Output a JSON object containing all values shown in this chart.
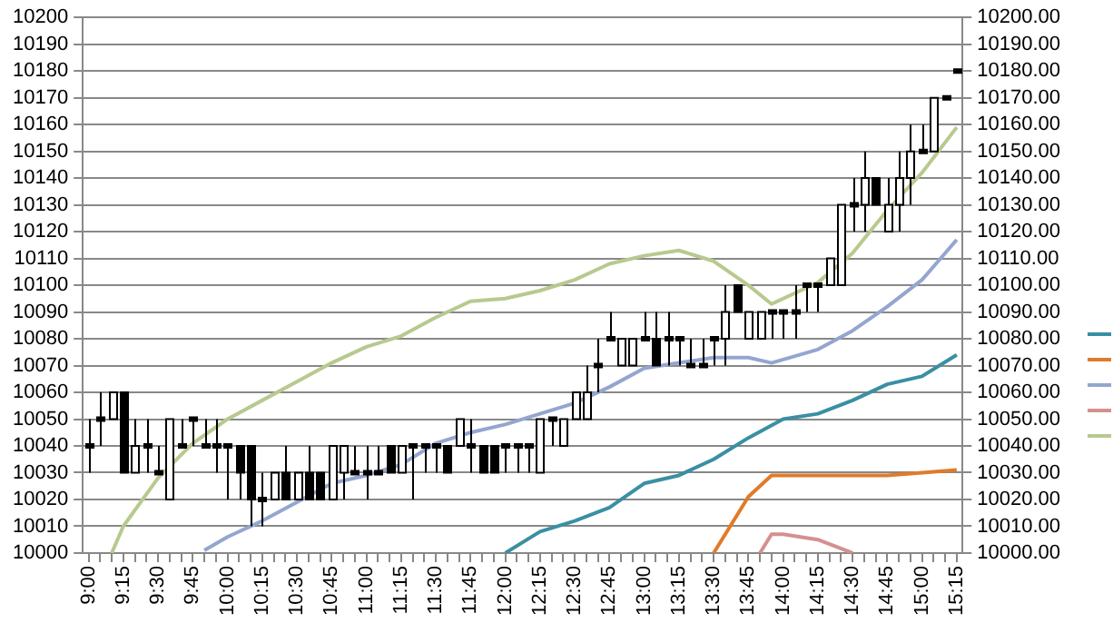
{
  "chart_data": {
    "type": "candlestick",
    "categories": [
      "9:00",
      null,
      null,
      "9:15",
      null,
      null,
      "9:30",
      null,
      null,
      "9:45",
      null,
      null,
      "10:00",
      null,
      null,
      "10:15",
      null,
      null,
      "10:30",
      null,
      null,
      "10:45",
      null,
      null,
      "11:00",
      null,
      null,
      "11:15",
      null,
      null,
      "11:30",
      null,
      null,
      "11:45",
      null,
      null,
      "12:00",
      null,
      null,
      "12:15",
      null,
      null,
      "12:30",
      null,
      null,
      "12:45",
      null,
      null,
      "13:00",
      null,
      null,
      "13:15",
      null,
      null,
      "13:30",
      null,
      null,
      "13:45",
      null,
      null,
      "14:00",
      null,
      null,
      "14:15",
      null,
      null,
      "14:30",
      null,
      null,
      "14:45",
      null,
      null,
      "15:00",
      null,
      null,
      "15:15"
    ],
    "ohlc": [
      [
        10040,
        10050,
        10030,
        10040
      ],
      [
        10050,
        10060,
        10040,
        10050
      ],
      [
        10050,
        10060,
        10050,
        10060
      ],
      [
        10060,
        10060,
        10030,
        10030
      ],
      [
        10030,
        10050,
        10030,
        10040
      ],
      [
        10040,
        10050,
        10030,
        10040
      ],
      [
        10030,
        10040,
        10030,
        10030
      ],
      [
        10020,
        10050,
        10020,
        10050
      ],
      [
        10040,
        10050,
        10040,
        10040
      ],
      [
        10050,
        10050,
        10040,
        10050
      ],
      [
        10040,
        10050,
        10040,
        10040
      ],
      [
        10040,
        10050,
        10030,
        10040
      ],
      [
        10040,
        10040,
        10020,
        10040
      ],
      [
        10040,
        10040,
        10020,
        10030
      ],
      [
        10040,
        10040,
        10010,
        10020
      ],
      [
        10020,
        10030,
        10010,
        10020
      ],
      [
        10020,
        10030,
        10020,
        10030
      ],
      [
        10030,
        10040,
        10020,
        10020
      ],
      [
        10020,
        10030,
        10020,
        10030
      ],
      [
        10030,
        10040,
        10020,
        10020
      ],
      [
        10030,
        10030,
        10020,
        10020
      ],
      [
        10020,
        10040,
        10020,
        10040
      ],
      [
        10030,
        10040,
        10020,
        10040
      ],
      [
        10030,
        10040,
        10030,
        10030
      ],
      [
        10030,
        10040,
        10020,
        10030
      ],
      [
        10030,
        10040,
        10030,
        10030
      ],
      [
        10040,
        10040,
        10030,
        10030
      ],
      [
        10030,
        10040,
        10030,
        10040
      ],
      [
        10040,
        10040,
        10020,
        10040
      ],
      [
        10040,
        10040,
        10030,
        10040
      ],
      [
        10040,
        10040,
        10030,
        10040
      ],
      [
        10040,
        10040,
        10030,
        10030
      ],
      [
        10040,
        10050,
        10040,
        10050
      ],
      [
        10040,
        10050,
        10030,
        10040
      ],
      [
        10040,
        10040,
        10030,
        10030
      ],
      [
        10040,
        10040,
        10030,
        10030
      ],
      [
        10040,
        10040,
        10030,
        10040
      ],
      [
        10040,
        10040,
        10030,
        10040
      ],
      [
        10040,
        10040,
        10030,
        10040
      ],
      [
        10030,
        10050,
        10030,
        10050
      ],
      [
        10050,
        10050,
        10040,
        10050
      ],
      [
        10040,
        10050,
        10040,
        10050
      ],
      [
        10050,
        10060,
        10050,
        10060
      ],
      [
        10050,
        10070,
        10050,
        10060
      ],
      [
        10070,
        10080,
        10060,
        10070
      ],
      [
        10080,
        10090,
        10080,
        10080
      ],
      [
        10070,
        10080,
        10070,
        10080
      ],
      [
        10070,
        10080,
        10070,
        10080
      ],
      [
        10080,
        10090,
        10080,
        10080
      ],
      [
        10080,
        10090,
        10070,
        10070
      ],
      [
        10080,
        10090,
        10070,
        10080
      ],
      [
        10080,
        10080,
        10070,
        10080
      ],
      [
        10070,
        10080,
        10070,
        10070
      ],
      [
        10070,
        10080,
        10070,
        10070
      ],
      [
        10080,
        10080,
        10070,
        10080
      ],
      [
        10080,
        10100,
        10070,
        10090
      ],
      [
        10100,
        10100,
        10090,
        10090
      ],
      [
        10080,
        10090,
        10080,
        10090
      ],
      [
        10080,
        10090,
        10080,
        10090
      ],
      [
        10090,
        10090,
        10080,
        10090
      ],
      [
        10090,
        10090,
        10080,
        10090
      ],
      [
        10090,
        10100,
        10080,
        10090
      ],
      [
        10100,
        10100,
        10090,
        10100
      ],
      [
        10100,
        10100,
        10090,
        10100
      ],
      [
        10100,
        10110,
        10100,
        10110
      ],
      [
        10100,
        10130,
        10100,
        10130
      ],
      [
        10130,
        10140,
        10120,
        10130
      ],
      [
        10130,
        10150,
        10120,
        10140
      ],
      [
        10140,
        10140,
        10130,
        10130
      ],
      [
        10120,
        10140,
        10120,
        10130
      ],
      [
        10130,
        10150,
        10120,
        10140
      ],
      [
        10140,
        10160,
        10130,
        10150
      ],
      [
        10150,
        10160,
        10150,
        10150
      ],
      [
        10150,
        10170,
        10150,
        10170
      ],
      [
        10170,
        10170,
        10170,
        10170
      ],
      [
        10180,
        10180,
        10180,
        10180
      ]
    ],
    "series": [
      {
        "type": "line",
        "color": "#3a8fa3",
        "values": [
          null,
          null,
          null,
          null,
          null,
          null,
          null,
          null,
          null,
          null,
          null,
          null,
          null,
          null,
          null,
          null,
          null,
          null,
          null,
          null,
          null,
          null,
          null,
          null,
          null,
          null,
          null,
          null,
          null,
          null,
          null,
          null,
          null,
          null,
          null,
          null,
          10000,
          null,
          null,
          10008,
          null,
          null,
          10012,
          null,
          null,
          10017,
          null,
          null,
          10026,
          null,
          null,
          10029,
          null,
          null,
          10035,
          null,
          null,
          10043,
          null,
          null,
          10050,
          null,
          null,
          10052,
          null,
          null,
          10057,
          null,
          null,
          10063,
          null,
          null,
          10066,
          null,
          null,
          10074
        ]
      },
      {
        "type": "line",
        "color": "#e07b2a",
        "values": [
          null,
          null,
          null,
          null,
          null,
          null,
          null,
          null,
          null,
          null,
          null,
          null,
          null,
          null,
          null,
          null,
          null,
          null,
          null,
          null,
          null,
          null,
          null,
          null,
          null,
          null,
          null,
          null,
          null,
          null,
          null,
          null,
          null,
          null,
          null,
          null,
          null,
          null,
          null,
          null,
          null,
          null,
          null,
          null,
          null,
          null,
          null,
          null,
          null,
          null,
          null,
          null,
          null,
          null,
          10000,
          null,
          null,
          10021,
          null,
          10029,
          null,
          null,
          null,
          10029,
          null,
          null,
          10029,
          null,
          null,
          10029,
          null,
          null,
          10030,
          null,
          null,
          10031
        ]
      },
      {
        "type": "line",
        "color": "#94a6cf",
        "values": [
          null,
          null,
          null,
          null,
          null,
          null,
          null,
          null,
          null,
          null,
          10001,
          null,
          10006,
          null,
          null,
          10012,
          null,
          null,
          10019,
          null,
          null,
          10026,
          null,
          null,
          10029,
          null,
          null,
          10033,
          null,
          null,
          10041,
          null,
          null,
          10045,
          null,
          null,
          10048,
          null,
          null,
          10052,
          null,
          null,
          10056,
          null,
          null,
          10062,
          null,
          null,
          10069,
          null,
          null,
          10071,
          null,
          null,
          10073,
          null,
          null,
          10073,
          null,
          10071,
          null,
          null,
          null,
          10076,
          null,
          null,
          10083,
          null,
          null,
          10092,
          null,
          null,
          10102,
          null,
          null,
          10117
        ]
      },
      {
        "type": "line",
        "color": "#d4908f",
        "values": [
          null,
          null,
          null,
          null,
          null,
          null,
          null,
          null,
          null,
          null,
          null,
          null,
          null,
          null,
          null,
          null,
          null,
          null,
          null,
          null,
          null,
          null,
          null,
          null,
          null,
          null,
          null,
          null,
          null,
          null,
          null,
          null,
          null,
          null,
          null,
          null,
          null,
          null,
          null,
          null,
          null,
          null,
          null,
          null,
          null,
          null,
          null,
          null,
          null,
          null,
          null,
          null,
          null,
          null,
          null,
          null,
          null,
          null,
          10000,
          10007,
          10007,
          null,
          null,
          10005,
          null,
          null,
          10000,
          null,
          null,
          null,
          null,
          null,
          null,
          null,
          null,
          null
        ]
      },
      {
        "type": "line",
        "color": "#b8c98f",
        "values": [
          null,
          null,
          10000,
          10010,
          null,
          null,
          10028,
          null,
          null,
          10041,
          null,
          null,
          10050,
          null,
          null,
          10057,
          null,
          null,
          10064,
          null,
          null,
          10071,
          null,
          null,
          10077,
          null,
          null,
          10081,
          null,
          null,
          10088,
          null,
          null,
          10094,
          null,
          null,
          10095,
          null,
          null,
          10098,
          null,
          null,
          10102,
          null,
          null,
          10108,
          null,
          null,
          10111,
          null,
          null,
          10113,
          null,
          null,
          10109,
          null,
          null,
          10100,
          null,
          10093,
          null,
          null,
          null,
          10101,
          null,
          null,
          10112,
          null,
          null,
          10128,
          null,
          null,
          10142,
          null,
          null,
          10159
        ]
      }
    ],
    "ylim": [
      10000,
      10200
    ],
    "yticks": [
      10000,
      10010,
      10020,
      10030,
      10040,
      10050,
      10060,
      10070,
      10080,
      10090,
      10100,
      10110,
      10120,
      10130,
      10140,
      10150,
      10160,
      10170,
      10180,
      10190,
      10200
    ],
    "y2lim": [
      10000,
      10200
    ],
    "y2ticks": [
      {
        "value": 10000,
        "label": "10000.00"
      },
      {
        "value": 10010,
        "label": "10010.00"
      },
      {
        "value": 10020,
        "label": "10020.00"
      },
      {
        "value": 10030,
        "label": "10030.00"
      },
      {
        "value": 10040,
        "label": "10040.00"
      },
      {
        "value": 10050,
        "label": "10050.00"
      },
      {
        "value": 10060,
        "label": "10060.00"
      },
      {
        "value": 10070,
        "label": "10070.00"
      },
      {
        "value": 10080,
        "label": "10080.00"
      },
      {
        "value": 10090,
        "label": "10090.00"
      },
      {
        "value": 10100,
        "label": "10100.00"
      },
      {
        "value": 10110,
        "label": "10110.00"
      },
      {
        "value": 10120,
        "label": "10120.00"
      },
      {
        "value": 10130,
        "label": "10130.00"
      },
      {
        "value": 10140,
        "label": "10140.00"
      },
      {
        "value": 10150,
        "label": "10150.00"
      },
      {
        "value": 10160,
        "label": "10160.00"
      },
      {
        "value": 10170,
        "label": "10170.00"
      },
      {
        "value": 10180,
        "label": "10180.00"
      },
      {
        "value": 10190,
        "label": "10190.00"
      },
      {
        "value": 10200,
        "label": "10200.00"
      }
    ],
    "grid": "y",
    "marker": "none",
    "line_style": "solid"
  }
}
